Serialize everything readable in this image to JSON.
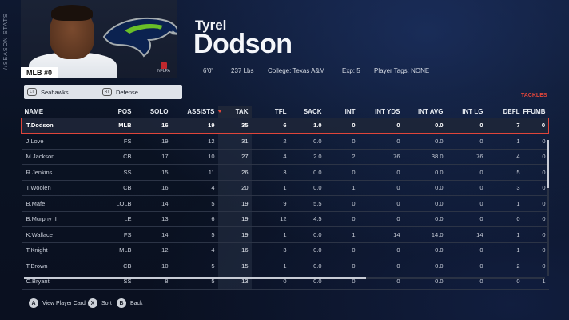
{
  "side_label": "//SEASON STATS",
  "player": {
    "first_name": "Tyrel",
    "last_name": "Dodson",
    "position_number": "MLB #0",
    "height": "6'0\"",
    "weight": "237 Lbs",
    "college": "College: Texas A&M",
    "exp": "Exp: 5",
    "tags": "Player Tags: NONE",
    "nflpa": "NFLPA"
  },
  "tabs": [
    {
      "button": "LT",
      "label": "Seahawks"
    },
    {
      "button": "RT",
      "label": "Defense"
    }
  ],
  "sort_category": "TACKLES",
  "colors": {
    "accent": "#e0453a",
    "team_navy": "#0b2250",
    "team_green": "#69be28"
  },
  "columns": [
    "NAME",
    "POS",
    "SOLO",
    "ASSISTS",
    "TAK",
    "TFL",
    "SACK",
    "INT",
    "INT YDS",
    "INT AVG",
    "INT LG",
    "DEFL",
    "FFUMB"
  ],
  "rows": [
    [
      "T.Dodson",
      "MLB",
      "16",
      "19",
      "35",
      "6",
      "1.0",
      "0",
      "0",
      "0.0",
      "0",
      "7",
      "0"
    ],
    [
      "J.Love",
      "FS",
      "19",
      "12",
      "31",
      "2",
      "0.0",
      "0",
      "0",
      "0.0",
      "0",
      "1",
      "0"
    ],
    [
      "M.Jackson",
      "CB",
      "17",
      "10",
      "27",
      "4",
      "2.0",
      "2",
      "76",
      "38.0",
      "76",
      "4",
      "0"
    ],
    [
      "R.Jenkins",
      "SS",
      "15",
      "11",
      "26",
      "3",
      "0.0",
      "0",
      "0",
      "0.0",
      "0",
      "5",
      "0"
    ],
    [
      "T.Woolen",
      "CB",
      "16",
      "4",
      "20",
      "1",
      "0.0",
      "1",
      "0",
      "0.0",
      "0",
      "3",
      "0"
    ],
    [
      "B.Mafe",
      "LOLB",
      "14",
      "5",
      "19",
      "9",
      "5.5",
      "0",
      "0",
      "0.0",
      "0",
      "1",
      "0"
    ],
    [
      "B.Murphy II",
      "LE",
      "13",
      "6",
      "19",
      "12",
      "4.5",
      "0",
      "0",
      "0.0",
      "0",
      "0",
      "0"
    ],
    [
      "K.Wallace",
      "FS",
      "14",
      "5",
      "19",
      "1",
      "0.0",
      "1",
      "14",
      "14.0",
      "14",
      "1",
      "0"
    ],
    [
      "T.Knight",
      "MLB",
      "12",
      "4",
      "16",
      "3",
      "0.0",
      "0",
      "0",
      "0.0",
      "0",
      "1",
      "0"
    ],
    [
      "T.Brown",
      "CB",
      "10",
      "5",
      "15",
      "1",
      "0.0",
      "0",
      "0",
      "0.0",
      "0",
      "2",
      "0"
    ],
    [
      "C.Bryant",
      "SS",
      "8",
      "5",
      "13",
      "0",
      "0.0",
      "0",
      "0",
      "0.0",
      "0",
      "0",
      "1"
    ]
  ],
  "footer": [
    {
      "button": "A",
      "label": "View Player Card"
    },
    {
      "button": "X",
      "label": "Sort"
    },
    {
      "button": "B",
      "label": "Back"
    }
  ]
}
